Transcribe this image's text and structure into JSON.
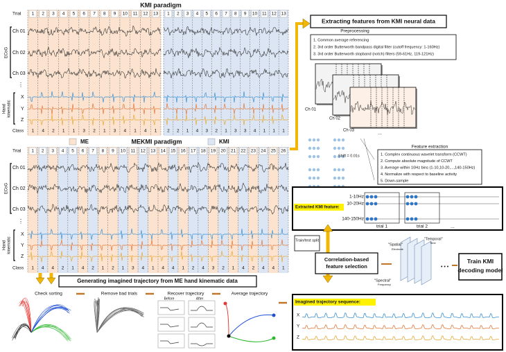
{
  "kmi_paradigm": {
    "title": "KMI paradigm",
    "trial_label": "Trial",
    "trials_left": [
      1,
      2,
      3,
      4,
      5,
      6,
      7,
      8,
      9,
      10,
      11,
      12,
      13
    ],
    "trials_right": [
      1,
      2,
      3,
      4,
      5,
      6,
      7,
      8,
      9,
      10,
      11,
      12,
      13
    ],
    "class_label": "Class",
    "classes_left": [
      1,
      4,
      2,
      1,
      1,
      3,
      2,
      1,
      3,
      4,
      1,
      4,
      1
    ],
    "classes_right": [
      2,
      2,
      1,
      4,
      3,
      2,
      1,
      3,
      3,
      4,
      1,
      1,
      1
    ]
  },
  "channels": {
    "ch01": "Ch 01",
    "ch02": "Ch 02",
    "ch03": "Ch 03",
    "ecog": "ECoG",
    "dots": "⋮",
    "hand": "Hand",
    "kinematic": "kinematic",
    "x": "X",
    "y": "Y",
    "z": "Z"
  },
  "mekmi_paradigm": {
    "title": "MEKMI paradigm",
    "me": "ME",
    "kmi": "KMI",
    "trial_label": "Trial",
    "trials": [
      1,
      2,
      3,
      4,
      5,
      6,
      7,
      8,
      9,
      10,
      11,
      12,
      13,
      14,
      15,
      16,
      17,
      18,
      19,
      20,
      21,
      22,
      23,
      24,
      25,
      26
    ],
    "class_label": "Class",
    "classes": [
      1,
      4,
      4,
      2,
      1,
      4,
      2,
      1,
      2,
      1,
      3,
      4,
      1,
      4,
      4,
      1,
      2,
      4,
      3,
      2,
      1,
      4,
      2,
      4,
      4,
      1
    ]
  },
  "feature_pipeline": {
    "header": "Extracting features from KMI neural data",
    "preprocessing": {
      "title": "Preprocessing",
      "steps": [
        "1.  Common average referencing",
        "2.  3rd order Butterworth bandpass digital filter (cutoff frequency: 1-160Hz)",
        "3.  3rd order Butterworth stopband (notch) filters (59-61Hz, 119-121Hz)"
      ]
    },
    "stack_labels": {
      "ch01": "Ch 01",
      "ch02": "Ch 02",
      "ch03": "Ch 03",
      "ellipsis": "..."
    },
    "shift": "Shift = 0.01s",
    "feature_extraction": {
      "title": "Feature extraction",
      "steps": [
        "1.  Complex continuous wavelet transform (CCWT)",
        "2.  Compute absolute magnitude of CCWT",
        "3.  Average within 10Hz bins (1-10,10-20,...,140-150Hz)",
        "4.  Normalize with respect to baseline activity",
        "5.  Down-sample"
      ]
    },
    "extracted": {
      "label": "Extracted KMI feature:",
      "bands": [
        "1-10Hz",
        "10-20Hz",
        "140-150Hz"
      ],
      "trial1": "trial 1",
      "trial2": "trial 2",
      "ellipsis": "..."
    },
    "split": "Train/test split",
    "selection": "Correlation-based feature selection",
    "cube": {
      "spatial": "\"Spatial\"",
      "electrode": "Electrode",
      "temporal": "\"Temporal\"",
      "time": "Time",
      "spectral": "\"Spectral\"",
      "frequency": "Frequency",
      "ellipsis": "• • •"
    },
    "train": "Train KMI decoding model"
  },
  "trajectory": {
    "header": "Generating imagined trajectory from ME hand kinematic data",
    "steps": [
      "Check sorting",
      "Remove bad trials",
      "Recover trajectory",
      "Average trajectory"
    ],
    "before": "Before",
    "after": "After",
    "sequence_label": "Imagined trajectory sequence:",
    "axes": [
      "X",
      "Y",
      "Z"
    ]
  }
}
